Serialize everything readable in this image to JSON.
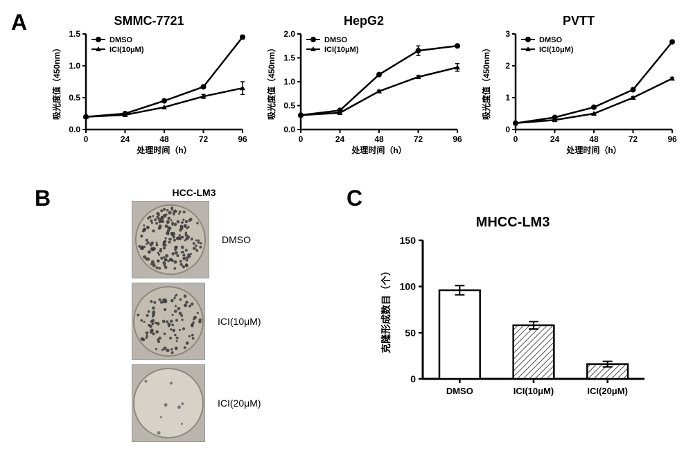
{
  "panelA": {
    "label": "A",
    "charts": [
      {
        "title": "SMMC-7721",
        "legend": [
          "DMSO",
          "ICI(10μM)"
        ],
        "series_markers": [
          "circle",
          "triangle"
        ],
        "xlabel": "处理时间（h）",
        "ylabel": "吸光度值（450nm）",
        "x": [
          0,
          24,
          48,
          72,
          96
        ],
        "ylim": [
          0,
          1.5
        ],
        "yticks": [
          0.0,
          0.5,
          1.0,
          1.5
        ],
        "dmso": [
          0.2,
          0.25,
          0.45,
          0.67,
          1.45
        ],
        "ici": [
          0.2,
          0.23,
          0.35,
          0.52,
          0.65
        ],
        "err_dmso": [
          0,
          0,
          0,
          0.02,
          0.03
        ],
        "err_ici": [
          0,
          0,
          0,
          0.03,
          0.1
        ],
        "line_color": "#000000",
        "axis_color": "#000000",
        "label_fontsize": 12,
        "title_fontsize": 18
      },
      {
        "title": "HepG2",
        "legend": [
          "DMSO",
          "ICI(10μM)"
        ],
        "series_markers": [
          "circle",
          "triangle"
        ],
        "xlabel": "处理时间（h）",
        "ylabel": "吸光度值（450nm）",
        "x": [
          0,
          24,
          48,
          72,
          96
        ],
        "ylim": [
          0,
          2.0
        ],
        "yticks": [
          0.0,
          0.5,
          1.0,
          1.5,
          2.0
        ],
        "dmso": [
          0.3,
          0.4,
          1.15,
          1.65,
          1.75
        ],
        "ici": [
          0.3,
          0.35,
          0.8,
          1.1,
          1.3
        ],
        "err_dmso": [
          0,
          0,
          0.03,
          0.1,
          0.02
        ],
        "err_ici": [
          0,
          0,
          0.02,
          0.03,
          0.08
        ],
        "line_color": "#000000",
        "axis_color": "#000000",
        "label_fontsize": 12,
        "title_fontsize": 18
      },
      {
        "title": "PVTT",
        "legend": [
          "DMSO",
          "ICI(10μM)"
        ],
        "series_markers": [
          "circle",
          "triangle"
        ],
        "xlabel": "处理时间（h）",
        "ylabel": "吸光度值（450nm）",
        "x": [
          0,
          24,
          48,
          72,
          96
        ],
        "ylim": [
          0,
          3.0
        ],
        "yticks": [
          0,
          1,
          2,
          3
        ],
        "dmso": [
          0.2,
          0.38,
          0.7,
          1.25,
          2.75
        ],
        "ici": [
          0.2,
          0.3,
          0.5,
          1.0,
          1.6
        ],
        "err_dmso": [
          0,
          0,
          0,
          0.03,
          0.03
        ],
        "err_ici": [
          0,
          0,
          0,
          0.03,
          0.04
        ],
        "line_color": "#000000",
        "axis_color": "#000000",
        "label_fontsize": 12,
        "title_fontsize": 18
      }
    ]
  },
  "panelB": {
    "label": "B",
    "title": "HCC-LM3",
    "wells": [
      {
        "label": "DMSO",
        "dot_count": 180,
        "bg": "#c6bfb3",
        "dot_color": "#3a3a3a"
      },
      {
        "label": "ICI(10μM)",
        "dot_count": 90,
        "bg": "#c3bdb1",
        "dot_color": "#3a3a3a"
      },
      {
        "label": "ICI(20μM)",
        "dot_count": 8,
        "bg": "#d7d2c8",
        "dot_color": "#6b6b6b"
      }
    ],
    "well_diameter": 100,
    "tile_bg": "#b9b5ae"
  },
  "panelC": {
    "label": "C",
    "title": "MHCC-LM3",
    "ylabel": "克隆形成数目（个）",
    "ylim": [
      0,
      150
    ],
    "yticks": [
      0,
      50,
      100,
      150
    ],
    "categories": [
      "DMSO",
      "ICI(10μM)",
      "ICI(20μM)"
    ],
    "values": [
      96,
      58,
      16
    ],
    "errors": [
      5,
      4,
      3
    ],
    "bar_fills": [
      "#ffffff",
      "hatch",
      "hatch"
    ],
    "bar_border": "#000000",
    "hatch_color": "#000000",
    "axis_color": "#000000",
    "bar_width": 0.55,
    "label_fontsize": 14,
    "title_fontsize": 20
  }
}
